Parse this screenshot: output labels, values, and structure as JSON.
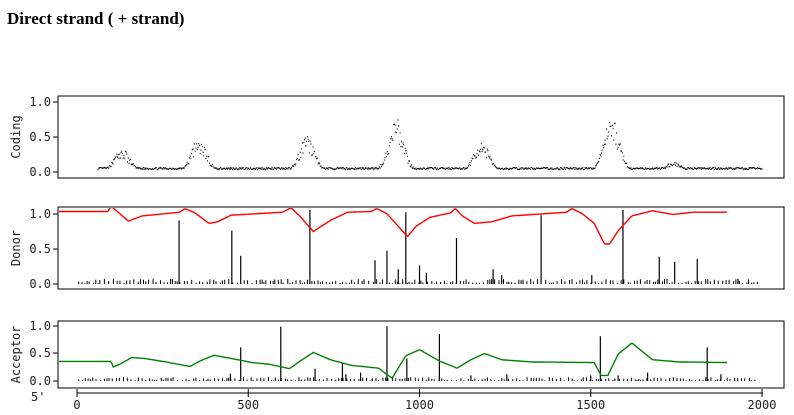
{
  "heading": "Direct strand ( + strand)",
  "chart_data": [
    {
      "type": "scatter",
      "ylabel": "Coding",
      "y_ticks": [
        "1.0",
        "0.5",
        "0.0"
      ],
      "ylim": [
        0,
        1
      ],
      "xlim": [
        0,
        2000
      ],
      "color": "#000000",
      "peaks": [
        [
          130,
          0.3
        ],
        [
          355,
          0.45
        ],
        [
          670,
          0.48
        ],
        [
          930,
          0.72
        ],
        [
          1180,
          0.4
        ],
        [
          1560,
          0.75
        ],
        [
          1740,
          0.12
        ]
      ]
    },
    {
      "type": "line+impulses",
      "ylabel": "Donor",
      "y_ticks": [
        "1.0",
        "0.5",
        "0.0"
      ],
      "ylim": [
        0,
        1
      ],
      "xlim": [
        0,
        2000
      ],
      "line_color": "#ff0000",
      "curve": [
        [
          -90,
          0.98
        ],
        [
          90,
          0.98
        ],
        [
          100,
          1.05
        ],
        [
          150,
          0.85
        ],
        [
          190,
          0.92
        ],
        [
          300,
          0.97
        ],
        [
          315,
          1.02
        ],
        [
          345,
          0.96
        ],
        [
          385,
          0.82
        ],
        [
          410,
          0.84
        ],
        [
          450,
          0.93
        ],
        [
          600,
          0.97
        ],
        [
          625,
          1.03
        ],
        [
          650,
          0.92
        ],
        [
          690,
          0.71
        ],
        [
          740,
          0.86
        ],
        [
          790,
          0.97
        ],
        [
          860,
          0.98
        ],
        [
          875,
          1.02
        ],
        [
          905,
          0.95
        ],
        [
          965,
          0.64
        ],
        [
          990,
          0.78
        ],
        [
          1030,
          0.9
        ],
        [
          1090,
          0.96
        ],
        [
          1105,
          1.02
        ],
        [
          1125,
          0.92
        ],
        [
          1160,
          0.82
        ],
        [
          1210,
          0.84
        ],
        [
          1270,
          0.92
        ],
        [
          1430,
          0.97
        ],
        [
          1445,
          1.02
        ],
        [
          1475,
          0.95
        ],
        [
          1510,
          0.82
        ],
        [
          1540,
          0.54
        ],
        [
          1555,
          0.54
        ],
        [
          1580,
          0.72
        ],
        [
          1620,
          0.92
        ],
        [
          1680,
          0.99
        ],
        [
          1740,
          0.94
        ],
        [
          1800,
          0.97
        ],
        [
          1900,
          0.97
        ]
      ],
      "impulses": [
        [
          298,
          0.86
        ],
        [
          452,
          0.72
        ],
        [
          478,
          0.38
        ],
        [
          680,
          1.0
        ],
        [
          870,
          0.32
        ],
        [
          905,
          0.45
        ],
        [
          938,
          0.2
        ],
        [
          960,
          0.97
        ],
        [
          1000,
          0.25
        ],
        [
          1020,
          0.15
        ],
        [
          1108,
          0.62
        ],
        [
          1215,
          0.2
        ],
        [
          1240,
          0.12
        ],
        [
          1355,
          0.93
        ],
        [
          1503,
          0.12
        ],
        [
          1594,
          1.0
        ],
        [
          1700,
          0.37
        ],
        [
          1745,
          0.3
        ],
        [
          1811,
          0.34
        ],
        [
          1930,
          0.07
        ]
      ]
    },
    {
      "type": "line+impulses",
      "ylabel": "Acceptor",
      "y_ticks": [
        "1.0",
        "0.5",
        "0.0"
      ],
      "x_ticks": [
        "0",
        "500",
        "1000",
        "1500",
        "2000"
      ],
      "x_axis_prefix": "5'",
      "ylim": [
        0,
        1
      ],
      "xlim": [
        0,
        2000
      ],
      "line_color": "#008000",
      "curve": [
        [
          -90,
          0.35
        ],
        [
          100,
          0.35
        ],
        [
          105,
          0.25
        ],
        [
          125,
          0.3
        ],
        [
          160,
          0.42
        ],
        [
          200,
          0.4
        ],
        [
          260,
          0.34
        ],
        [
          330,
          0.26
        ],
        [
          360,
          0.36
        ],
        [
          400,
          0.46
        ],
        [
          470,
          0.38
        ],
        [
          510,
          0.33
        ],
        [
          560,
          0.3
        ],
        [
          620,
          0.22
        ],
        [
          650,
          0.35
        ],
        [
          690,
          0.51
        ],
        [
          740,
          0.38
        ],
        [
          800,
          0.28
        ],
        [
          880,
          0.23
        ],
        [
          920,
          0.05
        ],
        [
          960,
          0.45
        ],
        [
          1000,
          0.56
        ],
        [
          1060,
          0.35
        ],
        [
          1110,
          0.23
        ],
        [
          1150,
          0.38
        ],
        [
          1190,
          0.49
        ],
        [
          1240,
          0.38
        ],
        [
          1330,
          0.34
        ],
        [
          1510,
          0.33
        ],
        [
          1530,
          0.1
        ],
        [
          1550,
          0.1
        ],
        [
          1580,
          0.48
        ],
        [
          1620,
          0.68
        ],
        [
          1680,
          0.38
        ],
        [
          1760,
          0.34
        ],
        [
          1900,
          0.33
        ]
      ],
      "impulses": [
        [
          448,
          0.13
        ],
        [
          478,
          0.6
        ],
        [
          595,
          0.97
        ],
        [
          695,
          0.22
        ],
        [
          775,
          0.32
        ],
        [
          785,
          0.12
        ],
        [
          828,
          0.15
        ],
        [
          905,
          0.98
        ],
        [
          963,
          0.4
        ],
        [
          1058,
          0.84
        ],
        [
          1150,
          0.1
        ],
        [
          1255,
          0.12
        ],
        [
          1500,
          0.1
        ],
        [
          1528,
          0.8
        ],
        [
          1580,
          0.1
        ],
        [
          1666,
          0.15
        ],
        [
          1840,
          0.6
        ],
        [
          1880,
          0.12
        ]
      ]
    }
  ]
}
